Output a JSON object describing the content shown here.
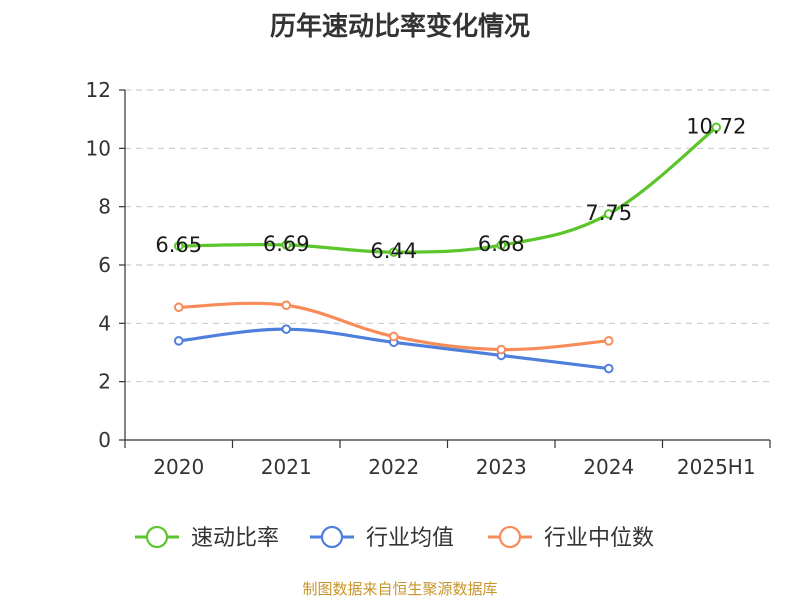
{
  "title": "历年速动比率变化情况",
  "footer": "制图数据来自恒生聚源数据库",
  "chart_data": {
    "type": "line",
    "title": "历年速动比率变化情况",
    "categories": [
      "2020",
      "2021",
      "2022",
      "2023",
      "2024",
      "2025H1"
    ],
    "ylim": [
      0,
      12
    ],
    "yticks": [
      0,
      2,
      4,
      6,
      8,
      10,
      12
    ],
    "grid": true,
    "legend_position": "bottom",
    "series": [
      {
        "name": "速动比率",
        "color": "#5bc52b",
        "values": [
          6.65,
          6.69,
          6.44,
          6.68,
          7.75,
          10.72
        ],
        "labels": [
          "6.65",
          "6.69",
          "6.44",
          "6.68",
          "7.75",
          "10.72"
        ]
      },
      {
        "name": "行业均值",
        "color": "#4f7fdc",
        "values": [
          3.4,
          3.8,
          3.35,
          2.9,
          2.45,
          null
        ]
      },
      {
        "name": "行业中位数",
        "color": "#f78c5a",
        "values": [
          4.55,
          4.62,
          3.55,
          3.1,
          3.4,
          null
        ]
      }
    ]
  }
}
